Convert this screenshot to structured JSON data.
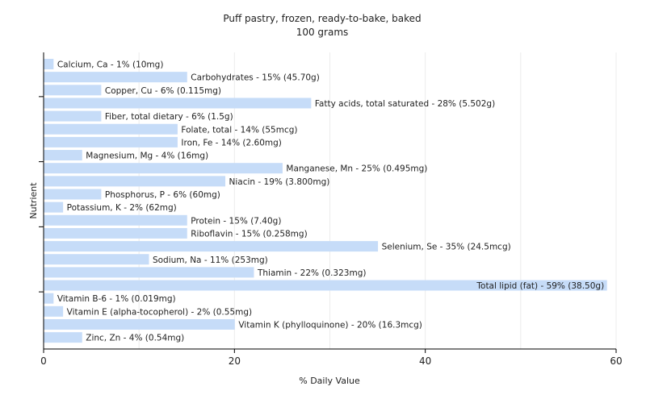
{
  "chart_data": {
    "type": "bar",
    "orientation": "horizontal",
    "title": "Puff pastry, frozen, ready-to-bake, baked",
    "subtitle": "100 grams",
    "xlabel": "% Daily Value",
    "ylabel": "Nutrient",
    "xlim": [
      0,
      60
    ],
    "xticks": [
      0,
      20,
      40,
      60
    ],
    "grid": true,
    "bar_color": "#c6dcf8",
    "categories": [
      "Calcium, Ca",
      "Carbohydrates",
      "Copper, Cu",
      "Fatty acids, total saturated",
      "Fiber, total dietary",
      "Folate, total",
      "Iron, Fe",
      "Magnesium, Mg",
      "Manganese, Mn",
      "Niacin",
      "Phosphorus, P",
      "Potassium, K",
      "Protein",
      "Riboflavin",
      "Selenium, Se",
      "Sodium, Na",
      "Thiamin",
      "Total lipid (fat)",
      "Vitamin B-6",
      "Vitamin E (alpha-tocopherol)",
      "Vitamin K (phylloquinone)",
      "Zinc, Zn"
    ],
    "values": [
      1,
      15,
      6,
      28,
      6,
      14,
      14,
      4,
      25,
      19,
      6,
      2,
      15,
      15,
      35,
      11,
      22,
      59,
      1,
      2,
      20,
      4
    ],
    "labels": [
      "Calcium, Ca - 1% (10mg)",
      "Carbohydrates - 15% (45.70g)",
      "Copper, Cu - 6% (0.115mg)",
      "Fatty acids, total saturated - 28% (5.502g)",
      "Fiber, total dietary - 6% (1.5g)",
      "Folate, total - 14% (55mcg)",
      "Iron, Fe - 14% (2.60mg)",
      "Magnesium, Mg - 4% (16mg)",
      "Manganese, Mn - 25% (0.495mg)",
      "Niacin - 19% (3.800mg)",
      "Phosphorus, P - 6% (60mg)",
      "Potassium, K - 2% (62mg)",
      "Protein - 15% (7.40g)",
      "Riboflavin - 15% (0.258mg)",
      "Selenium, Se - 35% (24.5mcg)",
      "Sodium, Na - 11% (253mg)",
      "Thiamin - 22% (0.323mg)",
      "Total lipid (fat) - 59% (38.50g)",
      "Vitamin B-6 - 1% (0.019mg)",
      "Vitamin E (alpha-tocopherol) - 2% (0.55mg)",
      "Vitamin K (phylloquinone) - 20% (16.3mcg)",
      "Zinc, Zn - 4% (0.54mg)"
    ]
  }
}
